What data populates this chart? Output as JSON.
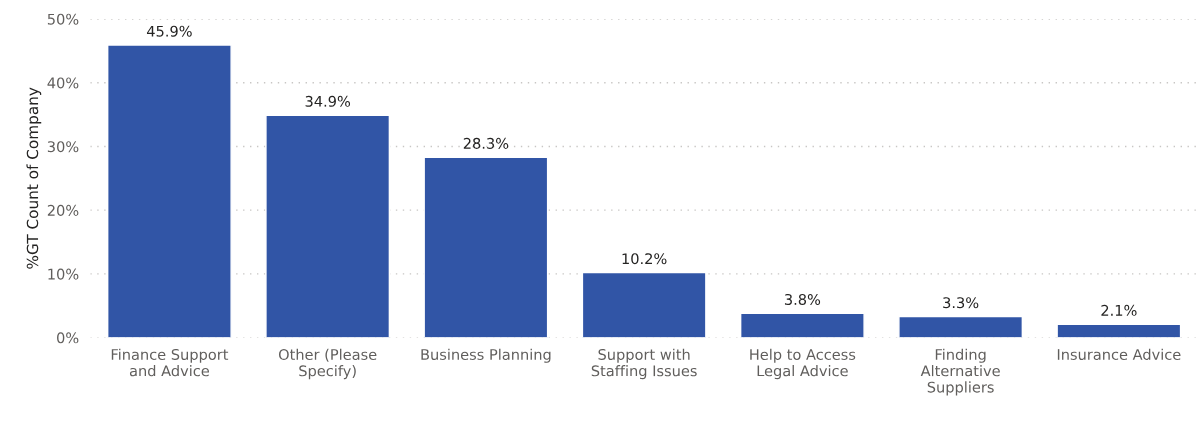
{
  "chart_data": {
    "type": "bar",
    "ylabel": "%GT Count of Company",
    "categories": [
      "Finance Support\nand Advice",
      "Other (Please\nSpecify)",
      "Business Planning",
      "Support with\nStaffing Issues",
      "Help to Access\nLegal Advice",
      "Finding\nAlternative\nSuppliers",
      "Insurance Advice"
    ],
    "values": [
      45.9,
      34.9,
      28.3,
      10.2,
      3.8,
      3.3,
      2.1
    ],
    "value_labels": [
      "45.9%",
      "34.9%",
      "28.3%",
      "10.2%",
      "3.8%",
      "3.3%",
      "2.1%"
    ],
    "color": "#3155a6",
    "ylim": [
      0,
      50
    ],
    "yticks": [
      {
        "value": 0,
        "label": "0%"
      },
      {
        "value": 10,
        "label": "10%"
      },
      {
        "value": 20,
        "label": "20%"
      },
      {
        "value": 30,
        "label": "30%"
      },
      {
        "value": 40,
        "label": "40%"
      },
      {
        "value": 50,
        "label": "50%"
      }
    ],
    "grid": "y",
    "legend": false
  }
}
